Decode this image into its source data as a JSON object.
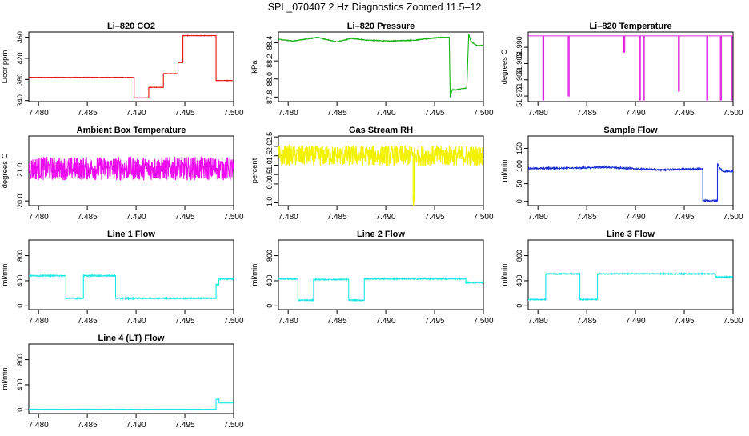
{
  "main_title": "SPL_070407  2 Hz Diagnostics Zoomed 11.5–12",
  "chart_data": [
    {
      "type": "line",
      "title": "Li–820 CO2",
      "ylabel": "Licor ppm",
      "color": "#e0140c",
      "xlim": [
        7.479,
        7.5
      ],
      "ylim": [
        338,
        470
      ],
      "xticks": [
        "7.480",
        "7.485",
        "7.490",
        "7.495",
        "7.500"
      ],
      "xtick_values": [
        7.48,
        7.485,
        7.49,
        7.495,
        7.5
      ],
      "yticks": [
        "340",
        "380",
        "420",
        "460"
      ],
      "ytick_values": [
        340,
        380,
        420,
        460
      ],
      "noise": 0.4,
      "series": [
        {
          "name": "CO2",
          "x": [
            7.479,
            7.4898,
            7.4898,
            7.4913,
            7.4913,
            7.4928,
            7.4928,
            7.4943,
            7.4943,
            7.4948,
            7.4948,
            7.4982,
            7.4982,
            7.4999
          ],
          "y": [
            384,
            384,
            345,
            345,
            365,
            365,
            391,
            391,
            412,
            412,
            463,
            463,
            378,
            378
          ]
        }
      ]
    },
    {
      "type": "line",
      "title": "Li–820 Pressure",
      "ylabel": "kPa",
      "color": "#17b217",
      "xlim": [
        7.479,
        7.5
      ],
      "ylim": [
        87.75,
        88.52
      ],
      "xticks": [
        "7.480",
        "7.485",
        "7.490",
        "7.495",
        "7.500"
      ],
      "xtick_values": [
        7.48,
        7.485,
        7.49,
        7.495,
        7.5
      ],
      "yticks": [
        "87.8",
        "88.0",
        "88.2",
        "88.4"
      ],
      "ytick_values": [
        87.8,
        88.0,
        88.2,
        88.4
      ],
      "noise": 0.004,
      "series": [
        {
          "name": "Pressure",
          "x": [
            7.479,
            7.4805,
            7.483,
            7.485,
            7.4865,
            7.488,
            7.4905,
            7.493,
            7.4955,
            7.4965,
            7.4966,
            7.4968,
            7.4971,
            7.4983,
            7.4985,
            7.4987,
            7.4993,
            7.5
          ],
          "y": [
            88.44,
            88.42,
            88.46,
            88.41,
            88.45,
            88.43,
            88.42,
            88.43,
            88.46,
            88.46,
            87.8,
            87.88,
            87.88,
            87.9,
            88.5,
            88.42,
            88.37,
            88.37
          ]
        }
      ]
    },
    {
      "type": "line",
      "title": "Li–820 Temperature",
      "ylabel": "degrees C",
      "color": "#e11ce1",
      "xlim": [
        7.479,
        7.5
      ],
      "ylim": [
        51.9733,
        51.9947
      ],
      "xticks": [
        "7.480",
        "7.485",
        "7.490",
        "7.495",
        "7.500"
      ],
      "xtick_values": [
        7.48,
        7.485,
        7.49,
        7.495,
        7.5
      ],
      "yticks": [
        "51.975",
        "51.980",
        "51.985",
        "51.990"
      ],
      "ytick_values": [
        51.975,
        51.98,
        51.985,
        51.99
      ],
      "noise": 0,
      "series": [
        {
          "name": "Temperature",
          "x": [
            7.479,
            7.4805,
            7.4805,
            7.4806,
            7.4806,
            7.4831,
            7.4831,
            7.4832,
            7.4832,
            7.4888,
            7.4888,
            7.4889,
            7.4889,
            7.4904,
            7.4904,
            7.4905,
            7.4905,
            7.4908,
            7.4908,
            7.4909,
            7.4909,
            7.4944,
            7.4944,
            7.4945,
            7.4945,
            7.4973,
            7.4973,
            7.4974,
            7.4974,
            7.4987,
            7.4987,
            7.4988,
            7.4988,
            7.4998,
            7.4998,
            7.4999,
            7.4999,
            7.5
          ],
          "y": [
            51.9935,
            51.9935,
            51.9738,
            51.9738,
            51.9935,
            51.9935,
            51.975,
            51.975,
            51.9935,
            51.9935,
            51.9885,
            51.9885,
            51.9935,
            51.9935,
            51.9738,
            51.9738,
            51.9935,
            51.9935,
            51.9738,
            51.9738,
            51.9935,
            51.9935,
            51.9765,
            51.9765,
            51.9935,
            51.9935,
            51.9738,
            51.9738,
            51.9935,
            51.9935,
            51.9738,
            51.9738,
            51.9935,
            51.9935,
            51.9738,
            51.9738,
            51.9935,
            51.9935
          ]
        }
      ]
    },
    {
      "type": "line",
      "title": "Ambient Box Temperature",
      "ylabel": "degrees C",
      "color": "#ee0aee",
      "xlim": [
        7.479,
        7.5
      ],
      "ylim": [
        19.85,
        22.1
      ],
      "xticks": [
        "7.480",
        "7.485",
        "7.490",
        "7.495",
        "7.500"
      ],
      "xtick_values": [
        7.48,
        7.485,
        7.49,
        7.495,
        7.5
      ],
      "yticks": [
        "20.0",
        "21.0"
      ],
      "ytick_values": [
        20.0,
        21.0
      ],
      "noise": 0.38,
      "series": [
        {
          "name": "Ambient",
          "x": [
            7.479,
            7.5
          ],
          "y": [
            21.05,
            21.05
          ]
        }
      ]
    },
    {
      "type": "line",
      "title": "Gas Stream RH",
      "ylabel": "percent",
      "color": "#f2f200",
      "xlim": [
        7.479,
        7.5
      ],
      "ylim": [
        -1.15,
        2.55
      ],
      "xticks": [
        "7.480",
        "7.485",
        "7.490",
        "7.495",
        "7.500"
      ],
      "xtick_values": [
        7.48,
        7.485,
        7.49,
        7.495,
        7.5
      ],
      "yticks": [
        "-1.0",
        "0.0",
        "0.5",
        "1.0",
        "1.5",
        "2.0",
        "2.5"
      ],
      "ytick_values": [
        -1.0,
        0.0,
        0.5,
        1.0,
        1.5,
        2.0,
        2.5
      ],
      "noise": 0.55,
      "series": [
        {
          "name": "RH",
          "x": [
            7.479,
            7.4928,
            7.4928,
            7.4929,
            7.4929,
            7.5
          ],
          "y": [
            1.5,
            1.5,
            -0.9,
            -0.9,
            1.5,
            1.5
          ]
        }
      ]
    },
    {
      "type": "line",
      "title": "Sample Flow",
      "ylabel": "ml/min",
      "color": "#1a2fd6",
      "xlim": [
        7.479,
        7.5
      ],
      "ylim": [
        -12,
        185
      ],
      "xticks": [
        "7.480",
        "7.485",
        "7.490",
        "7.495",
        "7.500"
      ],
      "xtick_values": [
        7.48,
        7.485,
        7.49,
        7.495,
        7.5
      ],
      "yticks": [
        "0",
        "50",
        "100",
        "150"
      ],
      "ytick_values": [
        0,
        50,
        100,
        150
      ],
      "noise": 2,
      "series": [
        {
          "name": "Sample",
          "x": [
            7.479,
            7.485,
            7.4868,
            7.49,
            7.4925,
            7.4965,
            7.4969,
            7.4969,
            7.4984,
            7.4984,
            7.4986,
            7.499,
            7.5
          ],
          "y": [
            93,
            95,
            97,
            92,
            89,
            92,
            92,
            2,
            2,
            108,
            95,
            85,
            85
          ]
        }
      ]
    },
    {
      "type": "line",
      "title": "Line 1 Flow",
      "ylabel": "ml/min",
      "color": "#1ae6e6",
      "xlim": [
        7.479,
        7.5
      ],
      "ylim": [
        -60,
        1050
      ],
      "xticks": [
        "7.480",
        "7.485",
        "7.490",
        "7.495",
        "7.500"
      ],
      "xtick_values": [
        7.48,
        7.485,
        7.49,
        7.495,
        7.5
      ],
      "yticks": [
        "0",
        "400",
        "800"
      ],
      "ytick_values": [
        0,
        400,
        800
      ],
      "noise": 9,
      "series": [
        {
          "name": "Line1",
          "x": [
            7.479,
            7.4828,
            7.4828,
            7.4846,
            7.4846,
            7.4879,
            7.4879,
            7.4982,
            7.4982,
            7.4985,
            7.4985,
            7.5
          ],
          "y": [
            480,
            480,
            120,
            120,
            480,
            480,
            120,
            120,
            340,
            340,
            430,
            430
          ]
        }
      ]
    },
    {
      "type": "line",
      "title": "Line 2 Flow",
      "ylabel": "ml/min",
      "color": "#1ae6e6",
      "xlim": [
        7.479,
        7.5
      ],
      "ylim": [
        -60,
        1050
      ],
      "xticks": [
        "7.480",
        "7.485",
        "7.490",
        "7.495",
        "7.500"
      ],
      "xtick_values": [
        7.48,
        7.485,
        7.49,
        7.495,
        7.5
      ],
      "yticks": [
        "0",
        "400",
        "800"
      ],
      "ytick_values": [
        0,
        400,
        800
      ],
      "noise": 8,
      "series": [
        {
          "name": "Line2",
          "x": [
            7.479,
            7.481,
            7.481,
            7.4826,
            7.4826,
            7.4862,
            7.4862,
            7.4878,
            7.4878,
            7.4982,
            7.4982,
            7.5
          ],
          "y": [
            430,
            430,
            90,
            90,
            420,
            420,
            90,
            90,
            430,
            430,
            370,
            370
          ]
        }
      ]
    },
    {
      "type": "line",
      "title": "Line 3 Flow",
      "ylabel": "ml/min",
      "color": "#1ae6e6",
      "xlim": [
        7.479,
        7.5
      ],
      "ylim": [
        -60,
        1050
      ],
      "xticks": [
        "7.480",
        "7.485",
        "7.490",
        "7.495",
        "7.500"
      ],
      "xtick_values": [
        7.48,
        7.485,
        7.49,
        7.495,
        7.5
      ],
      "yticks": [
        "0",
        "400",
        "800"
      ],
      "ytick_values": [
        0,
        400,
        800
      ],
      "noise": 8,
      "series": [
        {
          "name": "Line3",
          "x": [
            7.479,
            7.4808,
            7.4808,
            7.4843,
            7.4843,
            7.4861,
            7.4861,
            7.4982,
            7.4982,
            7.5
          ],
          "y": [
            100,
            100,
            510,
            510,
            100,
            100,
            510,
            510,
            460,
            460
          ]
        }
      ]
    },
    {
      "type": "line",
      "title": "Line 4 (LT) Flow",
      "ylabel": "ml/min",
      "color": "#1ae6e6",
      "xlim": [
        7.479,
        7.5
      ],
      "ylim": [
        -60,
        1050
      ],
      "xticks": [
        "7.480",
        "7.485",
        "7.490",
        "7.495",
        "7.500"
      ],
      "xtick_values": [
        7.48,
        7.485,
        7.49,
        7.495,
        7.5
      ],
      "yticks": [
        "0",
        "400",
        "800"
      ],
      "ytick_values": [
        0,
        400,
        800
      ],
      "noise": 2,
      "series": [
        {
          "name": "Line4",
          "x": [
            7.479,
            7.4982,
            7.4982,
            7.4985,
            7.4985,
            7.5
          ],
          "y": [
            10,
            10,
            170,
            170,
            110,
            110
          ]
        }
      ]
    }
  ]
}
